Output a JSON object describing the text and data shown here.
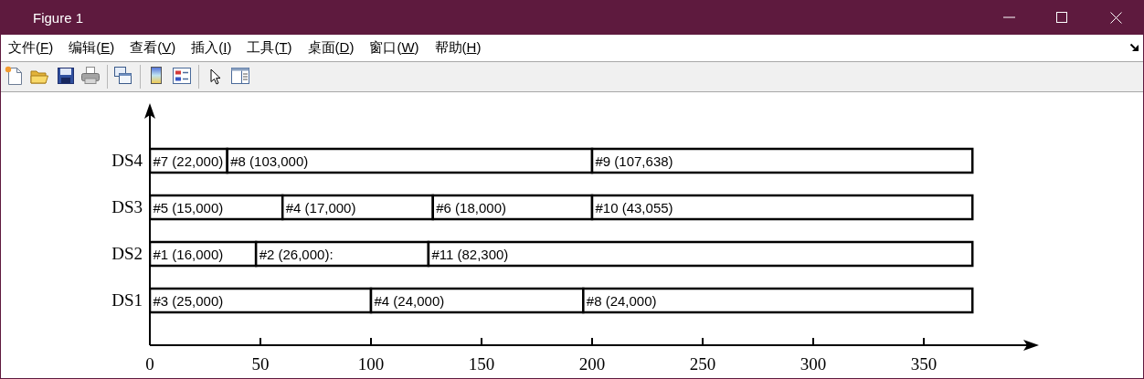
{
  "chart_data": {
    "type": "bar",
    "orientation": "horizontal",
    "stacked": true,
    "annotations": [
      "Figure 1",
      "文件(F)",
      "编辑(E)",
      "查看(V)",
      "插入(I)",
      "工具(T)",
      "桌面(D)",
      "窗口(W)",
      "帮助(H)"
    ],
    "categories": [
      "DS4",
      "DS3",
      "DS2",
      "DS1"
    ],
    "series": [
      {
        "color": "#ffffff",
        "values": [
          35,
          60,
          48,
          100
        ],
        "value_labels": [
          "#7 (22,000)",
          "#5 (15,000)",
          "#1 (16,000)",
          "#3 (25,000)"
        ]
      },
      {
        "color": "#ffffff",
        "values": [
          165,
          68,
          78,
          96
        ],
        "value_labels": [
          "#8 (103,000)",
          "#4 (17,000)",
          "#2 (26,000):",
          "#4 (24,000)"
        ]
      },
      {
        "color": "#ffffff",
        "values": [
          172,
          72,
          246,
          176
        ],
        "value_labels": [
          "#9 (107,638)",
          "#6 (18,000)",
          "#11 (82,300)",
          "#8 (24,000)"
        ]
      },
      {
        "color": "#ffffff",
        "values": [
          null,
          172,
          null,
          null
        ],
        "value_labels": [
          null,
          "#10 (43,055)",
          null,
          null
        ]
      }
    ],
    "xlim": [
      0,
      400
    ],
    "xticks": [
      0,
      50,
      100,
      150,
      200,
      250,
      300,
      350
    ]
  }
}
